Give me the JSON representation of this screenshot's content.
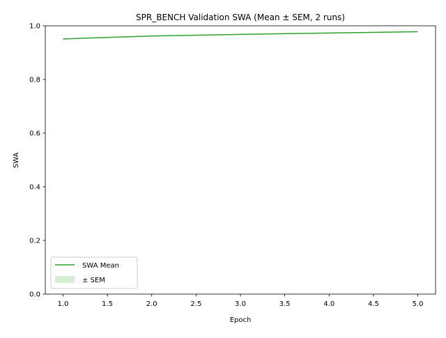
{
  "chart_data": {
    "type": "line",
    "title": "SPR_BENCH Validation SWA (Mean ± SEM, 2 runs)",
    "xlabel": "Epoch",
    "ylabel": "SWA",
    "xlim": [
      0.8,
      5.2
    ],
    "ylim": [
      0.0,
      1.0
    ],
    "xticks": [
      1.0,
      1.5,
      2.0,
      2.5,
      3.0,
      3.5,
      4.0,
      4.5,
      5.0
    ],
    "xtick_labels": [
      "1.0",
      "1.5",
      "2.0",
      "2.5",
      "3.0",
      "3.5",
      "4.0",
      "4.5",
      "5.0"
    ],
    "yticks": [
      0.0,
      0.2,
      0.4,
      0.6,
      0.8,
      1.0
    ],
    "ytick_labels": [
      "0.0",
      "0.2",
      "0.4",
      "0.6",
      "0.8",
      "1.0"
    ],
    "grid": false,
    "legend_position": "lower-left",
    "series": [
      {
        "name": "SWA Mean",
        "color": "#2ca02c",
        "x": [
          1,
          2,
          3,
          4,
          5
        ],
        "y": [
          0.951,
          0.962,
          0.968,
          0.973,
          0.978
        ],
        "sem": [
          0.001,
          0.001,
          0.001,
          0.001,
          0.001
        ]
      }
    ],
    "band_legend_label": "± SEM",
    "band_color": "#2ca02c"
  }
}
